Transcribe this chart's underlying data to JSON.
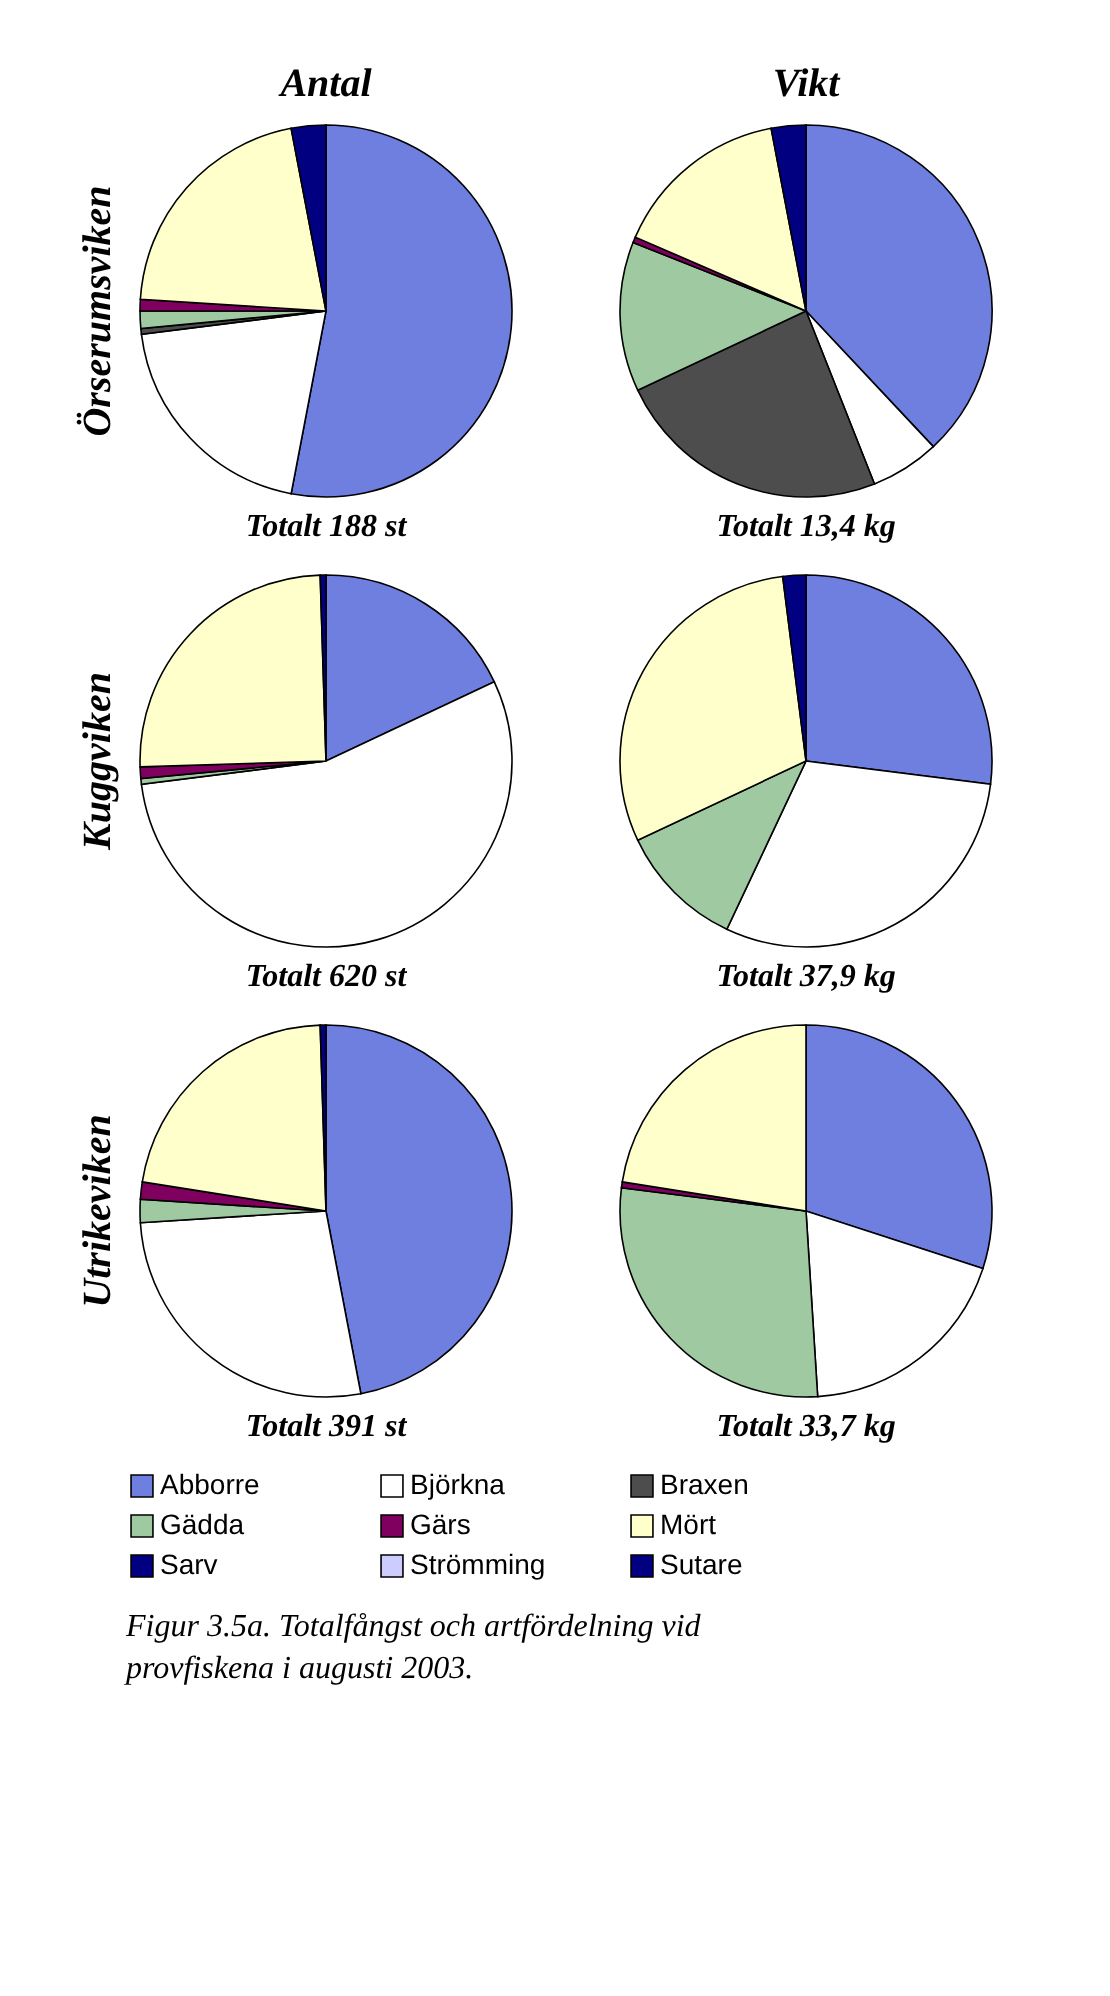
{
  "chart_data": {
    "type": "pie",
    "legend": "bottom",
    "categories": [
      "Abborre",
      "Björkna",
      "Braxen",
      "Gädda",
      "Gärs",
      "Mört",
      "Sarv",
      "Strömming",
      "Sutare"
    ],
    "colors": [
      "#6f7fe0",
      "#ffffff",
      "#4d4d4d",
      "#9fc9a0",
      "#800060",
      "#ffffcc",
      "#000080",
      "#ccccff",
      "#000080"
    ],
    "series": [
      {
        "name": "Totalt 188 st",
        "values": [
          53,
          20,
          0.5,
          1.5,
          1,
          21,
          3,
          null,
          null
        ]
      },
      {
        "name": "Totalt 13,4 kg",
        "values": [
          38,
          6,
          24,
          13,
          0.5,
          15.5,
          3,
          null,
          null
        ]
      },
      {
        "name": "Totalt 620 st",
        "values": [
          18,
          55,
          null,
          0.5,
          1,
          25,
          0.5,
          null,
          null
        ]
      },
      {
        "name": "Totalt 37,9 kg",
        "values": [
          27,
          30,
          null,
          11,
          null,
          30,
          2,
          null,
          null
        ]
      },
      {
        "name": "Totalt 391 st",
        "values": [
          47,
          27,
          null,
          2,
          1.5,
          22,
          0.5,
          null,
          null
        ]
      },
      {
        "name": "Totalt 33,7 kg",
        "values": [
          30,
          19,
          null,
          28,
          0.5,
          22.5,
          null,
          null,
          null
        ]
      }
    ],
    "annotations": [
      "Antal",
      "Vikt",
      "Örserumsviken",
      "Kuggviken",
      "Utrikeviken",
      "Figur 3.5a. Totalfångst och artfördelning vid provfiskena i augusti 2003."
    ]
  }
}
